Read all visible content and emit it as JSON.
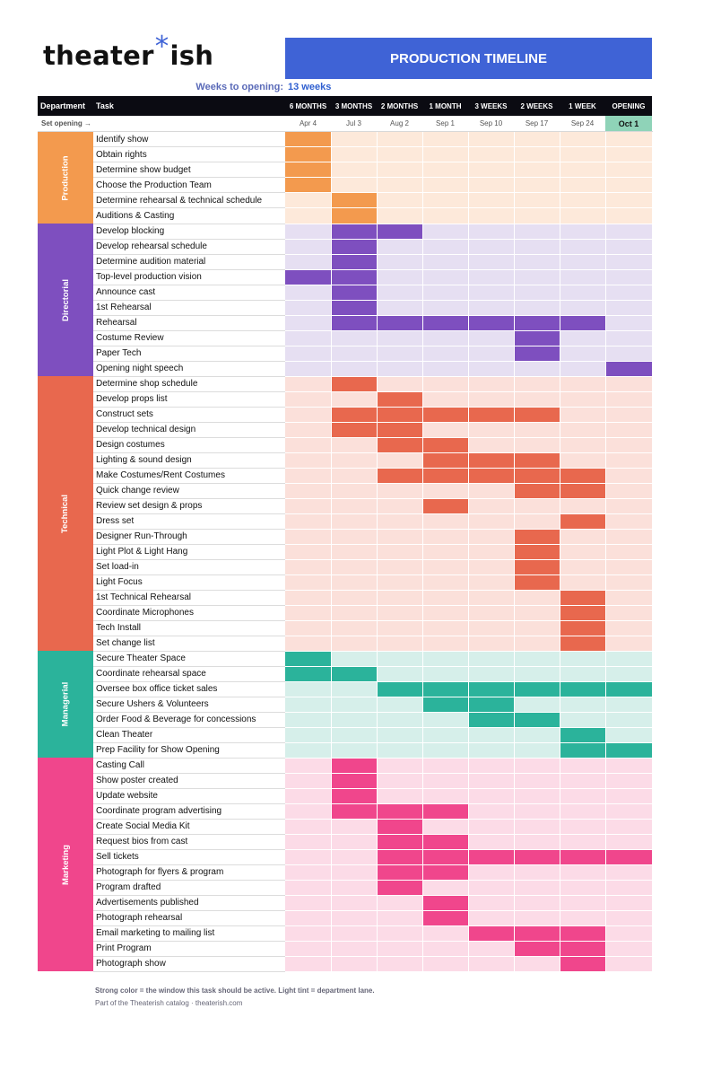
{
  "logo": {
    "left": "theater",
    "star": "*",
    "right": "ish"
  },
  "banner": {
    "title": "PRODUCTION TIMELINE"
  },
  "weeks": {
    "label": "Weeks to opening:",
    "value": "13 weeks"
  },
  "header": {
    "department": "Department",
    "task": "Task",
    "columns": [
      "6 MONTHS",
      "3 MONTHS",
      "2 MONTHS",
      "1 MONTH",
      "3 WEEKS",
      "2 WEEKS",
      "1 WEEK",
      "OPENING"
    ]
  },
  "set_opening_label": "Set opening →",
  "dates": [
    "Apr 4",
    "Jul 3",
    "Aug 2",
    "Sep 1",
    "Sep 10",
    "Sep 17",
    "Sep 24",
    "Oct 1"
  ],
  "departments": [
    {
      "name": "Production",
      "color": "#f39a4e",
      "tint": "#fde9da",
      "tasks": [
        {
          "label": "Identify show",
          "active": [
            0
          ]
        },
        {
          "label": "Obtain rights",
          "active": [
            0
          ]
        },
        {
          "label": "Determine show budget",
          "active": [
            0
          ]
        },
        {
          "label": "Choose the Production Team",
          "active": [
            0
          ]
        },
        {
          "label": "Determine rehearsal & technical schedule",
          "active": [
            1
          ]
        },
        {
          "label": "Auditions & Casting",
          "active": [
            1
          ]
        }
      ]
    },
    {
      "name": "Directorial",
      "color": "#7e4fbf",
      "tint": "#e6dff2",
      "tasks": [
        {
          "label": "Develop blocking",
          "active": [
            1,
            2
          ]
        },
        {
          "label": "Develop rehearsal schedule",
          "active": [
            1
          ]
        },
        {
          "label": "Determine audition material",
          "active": [
            1
          ]
        },
        {
          "label": "Top-level production vision",
          "active": [
            0,
            1
          ]
        },
        {
          "label": "Announce cast",
          "active": [
            1
          ]
        },
        {
          "label": "1st Rehearsal",
          "active": [
            1
          ]
        },
        {
          "label": "Rehearsal",
          "active": [
            1,
            2,
            3,
            4,
            5,
            6
          ]
        },
        {
          "label": "Costume Review",
          "active": [
            5
          ]
        },
        {
          "label": "Paper Tech",
          "active": [
            5
          ]
        },
        {
          "label": "Opening night speech",
          "active": [
            7
          ]
        }
      ]
    },
    {
      "name": "Technical",
      "color": "#e8684e",
      "tint": "#fbe0da",
      "tasks": [
        {
          "label": "Determine shop schedule",
          "active": [
            1
          ]
        },
        {
          "label": "Develop props list",
          "active": [
            2
          ]
        },
        {
          "label": "Construct sets",
          "active": [
            1,
            2,
            3,
            4,
            5
          ]
        },
        {
          "label": "Develop technical design",
          "active": [
            1,
            2
          ]
        },
        {
          "label": "Design costumes",
          "active": [
            2,
            3
          ]
        },
        {
          "label": "Lighting & sound design",
          "active": [
            3,
            4,
            5
          ]
        },
        {
          "label": "Make Costumes/Rent Costumes",
          "active": [
            2,
            3,
            4,
            5,
            6
          ]
        },
        {
          "label": "Quick change review",
          "active": [
            5,
            6
          ]
        },
        {
          "label": "Review set design & props",
          "active": [
            3
          ]
        },
        {
          "label": "Dress set",
          "active": [
            6
          ]
        },
        {
          "label": "Designer Run-Through",
          "active": [
            5
          ]
        },
        {
          "label": "Light Plot & Light Hang",
          "active": [
            5
          ]
        },
        {
          "label": "Set load-in",
          "active": [
            5
          ]
        },
        {
          "label": "Light Focus",
          "active": [
            5
          ]
        },
        {
          "label": "1st Technical Rehearsal",
          "active": [
            6
          ]
        },
        {
          "label": "Coordinate Microphones",
          "active": [
            6
          ]
        },
        {
          "label": "Tech Install",
          "active": [
            6
          ]
        },
        {
          "label": "Set change list",
          "active": [
            6
          ]
        }
      ]
    },
    {
      "name": "Managerial",
      "color": "#2bb39b",
      "tint": "#d6efea",
      "tasks": [
        {
          "label": "Secure Theater Space",
          "active": [
            0
          ]
        },
        {
          "label": "Coordinate rehearsal space",
          "active": [
            0,
            1
          ]
        },
        {
          "label": "Oversee box office ticket sales",
          "active": [
            2,
            3,
            4,
            5,
            6,
            7
          ]
        },
        {
          "label": "Secure Ushers & Volunteers",
          "active": [
            3,
            4
          ]
        },
        {
          "label": "Order Food & Beverage for concessions",
          "active": [
            4,
            5
          ]
        },
        {
          "label": "Clean Theater",
          "active": [
            6
          ]
        },
        {
          "label": "Prep Facility for Show Opening",
          "active": [
            6,
            7
          ]
        }
      ]
    },
    {
      "name": "Marketing",
      "color": "#f0468c",
      "tint": "#fcdbe7",
      "tasks": [
        {
          "label": "Casting Call",
          "active": [
            1
          ]
        },
        {
          "label": "Show poster created",
          "active": [
            1
          ]
        },
        {
          "label": "Update website",
          "active": [
            1
          ]
        },
        {
          "label": "Coordinate program advertising",
          "active": [
            1,
            2,
            3
          ]
        },
        {
          "label": "Create Social Media Kit",
          "active": [
            2
          ]
        },
        {
          "label": "Request bios from cast",
          "active": [
            2,
            3
          ]
        },
        {
          "label": "Sell tickets",
          "active": [
            2,
            3,
            4,
            5,
            6,
            7
          ]
        },
        {
          "label": "Photograph for flyers & program",
          "active": [
            2,
            3
          ]
        },
        {
          "label": "Program drafted",
          "active": [
            2
          ]
        },
        {
          "label": "Advertisements published",
          "active": [
            3
          ]
        },
        {
          "label": "Photograph rehearsal",
          "active": [
            3
          ]
        },
        {
          "label": "Email marketing to mailing list",
          "active": [
            4,
            5,
            6
          ]
        },
        {
          "label": "Print Program",
          "active": [
            5,
            6
          ]
        },
        {
          "label": "Photograph show",
          "active": [
            6
          ]
        }
      ]
    }
  ],
  "footer": {
    "note": "Strong color = the window this task should be active.  Light tint = department lane.",
    "catalog": "Part of the Theaterish catalog · theaterish.com"
  }
}
